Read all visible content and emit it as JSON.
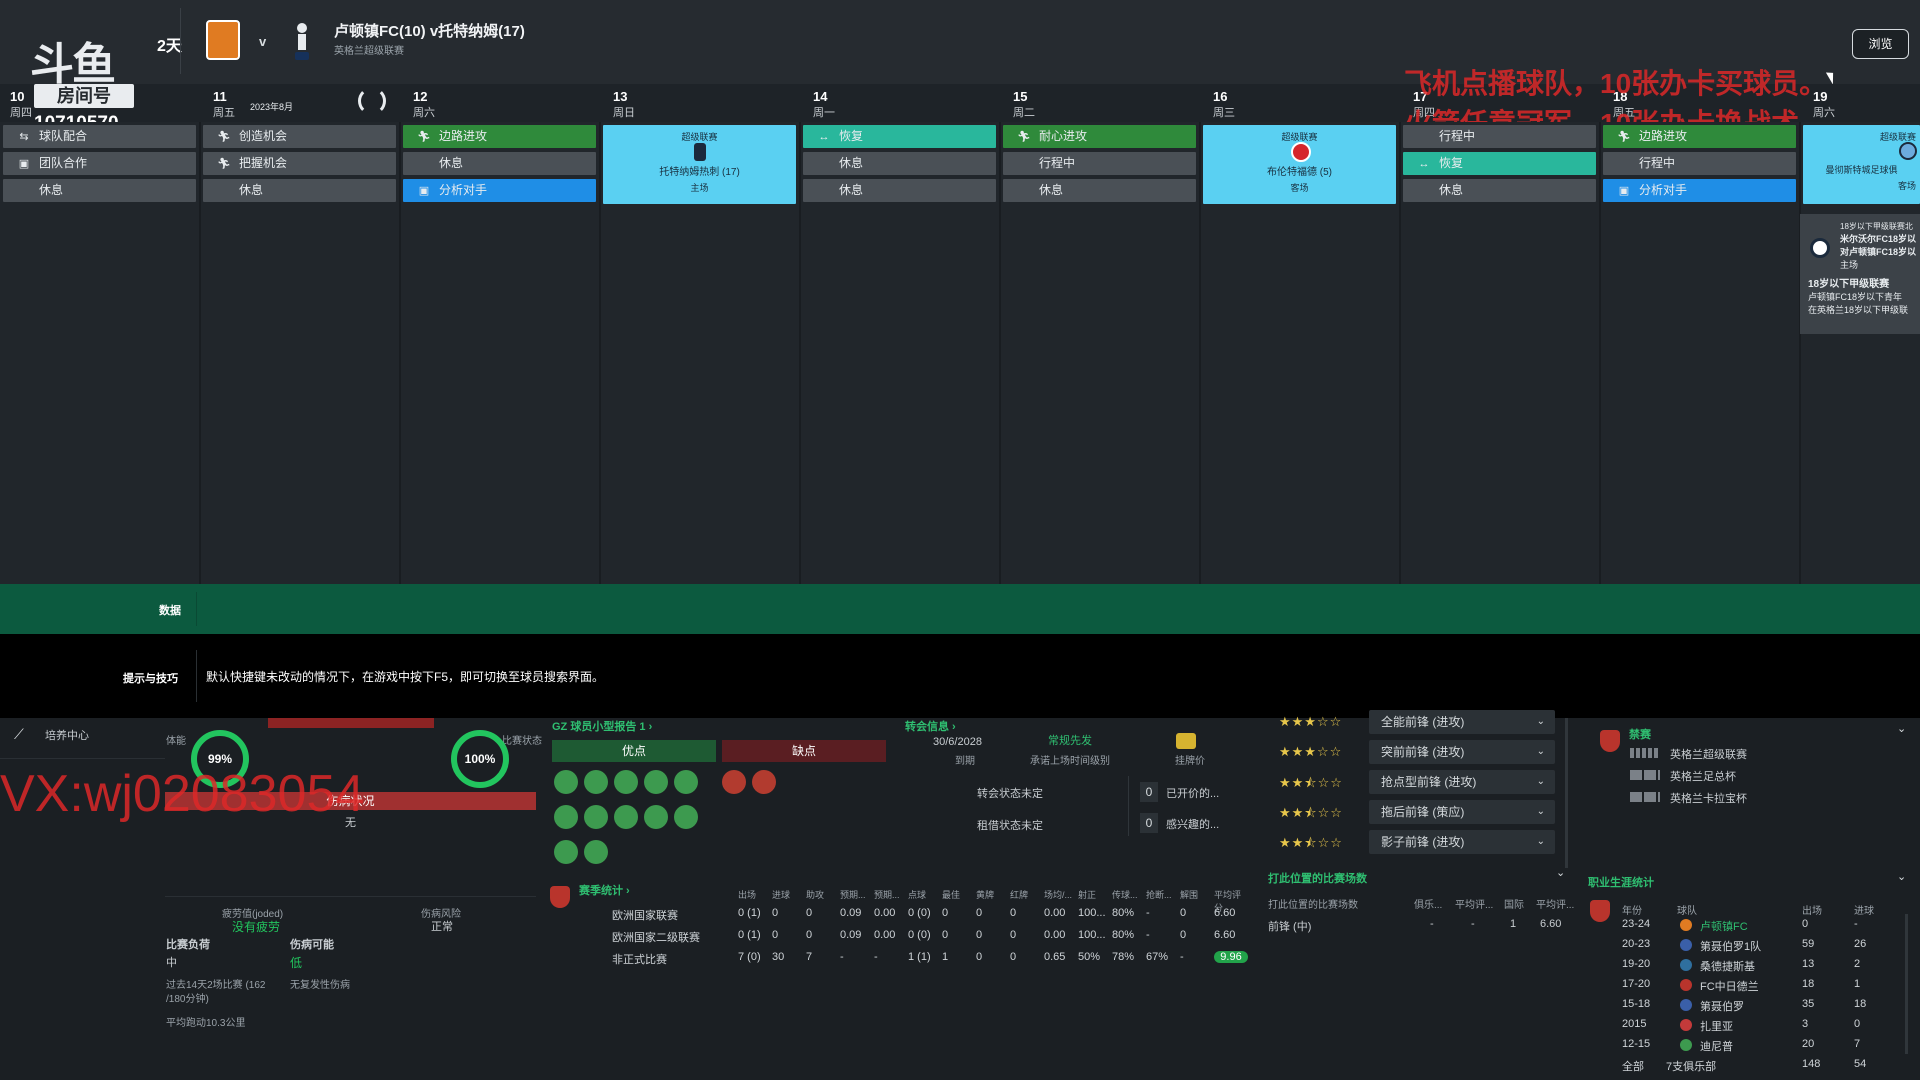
{
  "header": {
    "watermark_logo": "斗鱼",
    "room_label": "房间号",
    "room_number": "10710570",
    "days_left": "2天",
    "vs": "v",
    "match_title": "卢顿镇FC(10) v托特纳姆(17)",
    "match_subtitle": "英格兰超级联赛",
    "browse_button": "浏览",
    "overlay_line1": "飞机点播球队，10张办卡买球员。",
    "overlay_line2": "火箭任意冠军，10张办卡换战术。"
  },
  "days": [
    {
      "num": "10",
      "name": "周四"
    },
    {
      "num": "11",
      "name": "周五",
      "extra": "2023年8月"
    },
    {
      "num": "12",
      "name": "周六"
    },
    {
      "num": "13",
      "name": "周日"
    },
    {
      "num": "14",
      "name": "周一"
    },
    {
      "num": "15",
      "name": "周二"
    },
    {
      "num": "16",
      "name": "周三"
    },
    {
      "num": "17",
      "name": "周四"
    },
    {
      "num": "18",
      "name": "周五"
    },
    {
      "num": "19",
      "name": "周六"
    }
  ],
  "schedule": {
    "d10": [
      "球队配合",
      "团队合作",
      "休息"
    ],
    "d11": [
      "创造机会",
      "把握机会",
      "休息"
    ],
    "d12": [
      "边路进攻",
      "休息",
      "分析对手"
    ],
    "d13": {
      "comp": "超级联赛",
      "opp": "托特纳姆热刺 (17)",
      "venue": "主场"
    },
    "d14": [
      "恢复",
      "休息",
      "休息"
    ],
    "d15": [
      "耐心进攻",
      "行程中",
      "休息"
    ],
    "d16": {
      "comp": "超级联赛",
      "opp": "布伦特福德 (5)",
      "venue": "客场"
    },
    "d17": [
      "行程中",
      "恢复",
      "休息"
    ],
    "d18": [
      "边路进攻",
      "行程中",
      "分析对手"
    ],
    "d19": {
      "comp": "超级联赛",
      "opp": "曼彻斯特城足球俱",
      "venue": "客场"
    }
  },
  "side_card": {
    "l1": "18岁以下甲级联赛北",
    "l2": "米尔沃尔FC18岁以",
    "l3": "对卢顿镇FC18岁以",
    "l4": "主场",
    "l5": "18岁以下甲级联赛",
    "l6": "卢顿镇FC18岁以下青年",
    "l7": "在英格兰18岁以下甲级联"
  },
  "data_bar": {
    "label": "数据"
  },
  "tips": {
    "label": "提示与技巧",
    "text": "默认快捷键未改动的情况下，在游戏中按下F5，即可切换至球员搜索界面。"
  },
  "bottom": {
    "training_center": "培养中心",
    "stamina_label": "体能",
    "stamina": "99%",
    "condition_label": "比赛状态",
    "condition": "100%",
    "injury_word": "伤病状况",
    "injury_val": "无",
    "overlay_vx": "VX:wj02083054",
    "fatigue_label": "疲劳值(joded)",
    "fatigue_val": "没有疲劳",
    "injury_risk_label": "伤病风险",
    "injury_risk_val": "正常",
    "load_label": "比赛负荷",
    "load_val": "中",
    "injury_chance_label": "伤病可能",
    "injury_chance_val": "低",
    "load_note1": "过去14天2场比赛 (162",
    "load_note2": "/180分钟)",
    "load_note3": "无复发性伤病",
    "avg_run": "平均跑动10.3公里",
    "report_title": "GZ 球员小型报告 1",
    "pros": "优点",
    "cons": "缺点",
    "transfer_title": "转会信息",
    "contract_date": "30/6/2028",
    "contract_label": "到期",
    "contract_type": "常规先发",
    "contract_note": "承诺上场时间级别",
    "price_label": "挂牌价",
    "transfer_status": "转会状态未定",
    "loan_status": "租借状态未定",
    "offers_count": "0",
    "offers_label": "已开价的...",
    "interest_count": "0",
    "interest_label": "感兴趣的...",
    "season_title": "赛季统计",
    "season_headers": [
      "出场",
      "进球",
      "助攻",
      "预期...",
      "预期...",
      "点球",
      "最佳",
      "黄牌",
      "红牌",
      "场均/...",
      "射正",
      "传球...",
      "抢断...",
      "解围",
      "平均评分"
    ],
    "season_rows": [
      {
        "name": "欧洲国家联赛",
        "vals": [
          "0 (1)",
          "0",
          "0",
          "0.09",
          "0.00",
          "0 (0)",
          "0",
          "0",
          "0",
          "0.00",
          "100...",
          "80%",
          "-",
          "0",
          "6.60"
        ]
      },
      {
        "name": "欧洲国家二级联赛",
        "vals": [
          "0 (1)",
          "0",
          "0",
          "0.09",
          "0.00",
          "0 (0)",
          "0",
          "0",
          "0",
          "0.00",
          "100...",
          "80%",
          "-",
          "0",
          "6.60"
        ]
      },
      {
        "name": "非正式比赛",
        "vals": [
          "7 (0)",
          "30",
          "7",
          "-",
          "-",
          "1 (1)",
          "1",
          "0",
          "0",
          "0.65",
          "50%",
          "78%",
          "67%",
          "-",
          "9.96"
        ]
      }
    ],
    "roles": [
      "全能前锋 (进攻)",
      "突前前锋 (进攻)",
      "抢点型前锋 (进攻)",
      "拖后前锋 (策应)",
      "影子前锋 (进攻)"
    ],
    "pos_title": "打此位置的比赛场数",
    "pos_sub": "打此位置的比赛场数",
    "pos_headers": [
      "俱乐...",
      "平均评...",
      "国际",
      "平均评..."
    ],
    "pos_row": {
      "name": "前锋 (中)",
      "v1": "-",
      "v2": "-",
      "v3": "1",
      "v4": "6.60"
    },
    "ban_title": "禁赛",
    "bans": [
      "英格兰超级联赛",
      "英格兰足总杯",
      "英格兰卡拉宝杯"
    ],
    "career_title": "职业生涯统计",
    "career_headers": [
      "年份",
      "球队",
      "出场",
      "进球"
    ],
    "career": [
      {
        "y": "23-24",
        "t": "卢顿镇FC",
        "a": "0",
        "g": "-"
      },
      {
        "y": "20-23",
        "t": "第聂伯罗1队",
        "a": "59",
        "g": "26"
      },
      {
        "y": "19-20",
        "t": "桑德捷斯基",
        "a": "13",
        "g": "2"
      },
      {
        "y": "17-20",
        "t": "FC中日德兰",
        "a": "18",
        "g": "1"
      },
      {
        "y": "15-18",
        "t": "第聂伯罗",
        "a": "35",
        "g": "18"
      },
      {
        "y": "2015",
        "t": "扎里亚",
        "a": "3",
        "g": "0"
      },
      {
        "y": "12-15",
        "t": "迪尼普",
        "a": "20",
        "g": "7"
      }
    ],
    "career_total": {
      "y": "全部",
      "t": "7支俱乐部",
      "a": "148",
      "g": "54"
    }
  },
  "colors": {
    "green": "#2f8a3b",
    "teal": "#29b79c",
    "blue": "#1f8ee6",
    "match": "#5ad0f2",
    "databar": "#0c5a3f"
  }
}
